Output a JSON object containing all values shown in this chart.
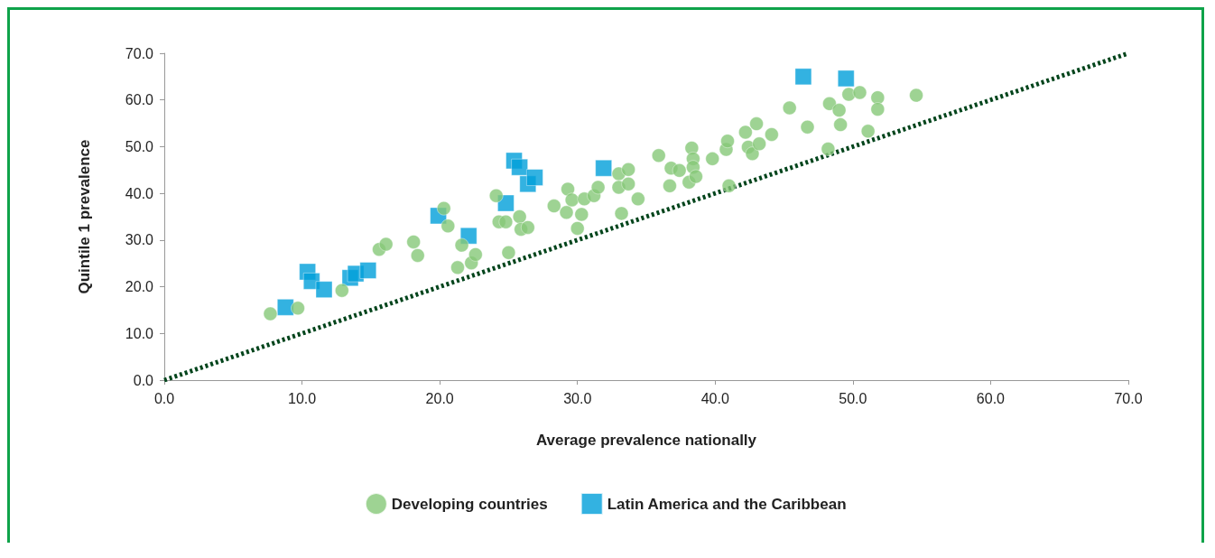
{
  "chart_data": {
    "type": "scatter",
    "xlabel": "Average prevalence nationally",
    "ylabel": "Quintile 1 prevalence",
    "xlim": [
      0,
      70
    ],
    "ylim": [
      0,
      70
    ],
    "xticks": [
      {
        "value": 0,
        "label": "0.0"
      },
      {
        "value": 10,
        "label": "10.0"
      },
      {
        "value": 20,
        "label": "20.0"
      },
      {
        "value": 30,
        "label": "30.0"
      },
      {
        "value": 40,
        "label": "40.0"
      },
      {
        "value": 50,
        "label": "50.0"
      },
      {
        "value": 60,
        "label": "60.0"
      },
      {
        "value": 70,
        "label": "70.0"
      }
    ],
    "yticks": [
      {
        "value": 0,
        "label": "0.0"
      },
      {
        "value": 10,
        "label": "10.0"
      },
      {
        "value": 20,
        "label": "20.0"
      },
      {
        "value": 30,
        "label": "30.0"
      },
      {
        "value": 40,
        "label": "40.0"
      },
      {
        "value": 50,
        "label": "50.0"
      },
      {
        "value": 60,
        "label": "60.0"
      },
      {
        "value": 70,
        "label": "70.0"
      }
    ],
    "grid": false,
    "legend": "bottom",
    "series": [
      {
        "name": "Developing countries",
        "color": "#86c878",
        "marker": "circle",
        "x": [
          7.7,
          9.7,
          12.9,
          15.6,
          16.1,
          18.1,
          18.4,
          20.3,
          20.6,
          21.6,
          21.3,
          22.3,
          22.6,
          24.1,
          24.3,
          24.8,
          25.0,
          25.8,
          25.9,
          26.4,
          28.3,
          29.2,
          29.3,
          29.6,
          30.0,
          30.3,
          30.5,
          31.2,
          31.5,
          33.0,
          33.0,
          33.2,
          33.7,
          33.7,
          34.4,
          35.9,
          36.8,
          36.7,
          37.4,
          38.1,
          38.3,
          38.4,
          38.4,
          38.6,
          39.8,
          40.8,
          40.9,
          41.0,
          42.2,
          42.4,
          42.7,
          43.0,
          43.2,
          44.1,
          45.4,
          46.7,
          48.3,
          48.2,
          49.0,
          49.1,
          49.7,
          50.5,
          51.1,
          51.8,
          51.8,
          54.6
        ],
        "values": [
          14.2,
          15.4,
          19.2,
          28.0,
          29.1,
          29.6,
          26.7,
          36.8,
          33.0,
          28.9,
          24.1,
          25.1,
          26.9,
          39.5,
          33.9,
          33.9,
          27.3,
          35.0,
          32.3,
          32.7,
          37.3,
          35.9,
          40.9,
          38.6,
          32.5,
          35.5,
          38.8,
          39.5,
          41.3,
          44.2,
          41.3,
          35.7,
          45.1,
          42.0,
          38.8,
          48.1,
          45.4,
          41.6,
          44.9,
          42.4,
          49.7,
          47.4,
          45.6,
          43.6,
          47.4,
          49.4,
          51.2,
          41.6,
          53.1,
          49.9,
          48.5,
          54.9,
          50.6,
          52.6,
          58.3,
          54.2,
          59.2,
          49.5,
          57.8,
          54.7,
          61.2,
          61.6,
          53.3,
          60.5,
          58.0,
          61.0
        ]
      },
      {
        "name": "Latin America and the Caribbean",
        "color": "#009fda",
        "marker": "square",
        "x": [
          8.8,
          10.4,
          10.7,
          11.6,
          13.5,
          13.9,
          14.8,
          19.9,
          22.1,
          24.8,
          25.4,
          25.8,
          26.4,
          26.9,
          31.9,
          46.4,
          49.5
        ],
        "values": [
          15.6,
          23.2,
          21.2,
          19.4,
          21.9,
          22.8,
          23.5,
          35.2,
          30.9,
          37.9,
          47.0,
          45.6,
          42.0,
          43.4,
          45.4,
          65.0,
          64.6
        ]
      },
      {
        "type": "line",
        "color": "#00441b",
        "line_style": "dotted",
        "marker": "none",
        "x": [
          0,
          70
        ],
        "values": [
          0,
          70
        ]
      }
    ]
  }
}
